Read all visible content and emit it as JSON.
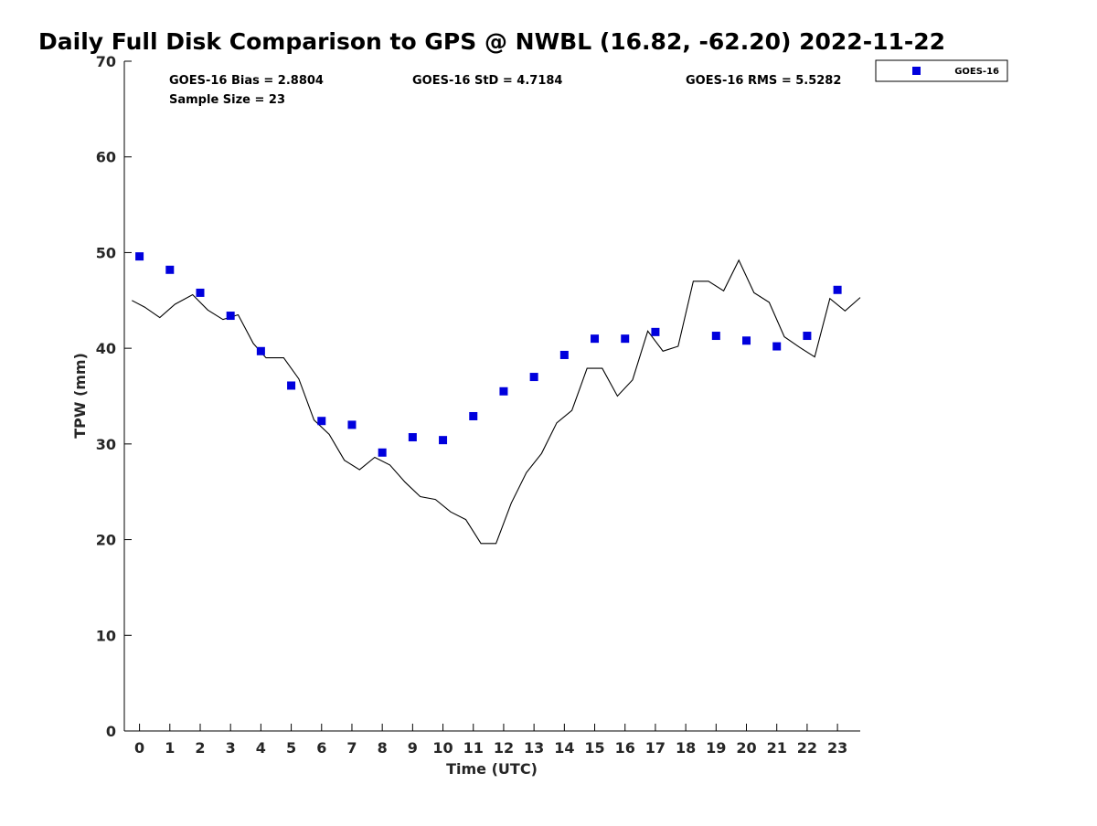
{
  "chart_data": {
    "type": "scatter",
    "title": "Daily Full Disk Comparison to GPS @ NWBL (16.82, -62.20) 2022-11-22",
    "xlabel": "Time (UTC)",
    "ylabel": "TPW (mm)",
    "xlim": [
      -0.5,
      23.75
    ],
    "ylim": [
      0,
      70
    ],
    "x_ticks": [
      0,
      1,
      2,
      3,
      4,
      5,
      6,
      7,
      8,
      9,
      10,
      11,
      12,
      13,
      14,
      15,
      16,
      17,
      18,
      19,
      20,
      21,
      22,
      23
    ],
    "x_tick_labels": [
      "0",
      "1",
      "2",
      "3",
      "4",
      "5",
      "6",
      "7",
      "8",
      "9",
      "10",
      "11",
      "12",
      "13",
      "14",
      "15",
      "16",
      "17",
      "18",
      "19",
      "20",
      "21",
      "22",
      "23"
    ],
    "y_ticks": [
      0,
      10,
      20,
      30,
      40,
      50,
      60,
      70
    ],
    "y_tick_labels": [
      "0",
      "10",
      "20",
      "30",
      "40",
      "50",
      "60",
      "70"
    ],
    "grid": false,
    "legend_position": "top-right, outside plot",
    "stats": {
      "bias": "GOES-16 Bias = 2.8804",
      "std": "GOES-16 StD = 4.7184",
      "rms": "GOES-16 RMS = 5.5282",
      "sample_size": "Sample Size = 23"
    },
    "series": [
      {
        "name": "GOES-16",
        "kind": "scatter",
        "marker": "square",
        "color": "#0000dd",
        "x": [
          0,
          1,
          2,
          3,
          4,
          5,
          6,
          7,
          8,
          9,
          10,
          11,
          12,
          13,
          14,
          15,
          16,
          17,
          19,
          20,
          21,
          22,
          23
        ],
        "y": [
          49.6,
          48.2,
          45.8,
          43.4,
          39.7,
          36.1,
          32.4,
          32.0,
          29.1,
          30.7,
          30.4,
          32.9,
          35.5,
          37.0,
          39.3,
          41.0,
          41.0,
          41.7,
          41.3,
          40.8,
          40.2,
          41.3,
          46.1
        ]
      },
      {
        "kind": "line",
        "color": "#000000",
        "x": [
          -0.25,
          0.17,
          0.67,
          1.17,
          1.75,
          2.25,
          2.75,
          3.25,
          3.75,
          4.17,
          4.75,
          5.25,
          5.75,
          6.25,
          6.75,
          7.25,
          7.75,
          8.25,
          8.75,
          9.25,
          9.75,
          10.25,
          10.75,
          11.25,
          11.75,
          12.25,
          12.75,
          13.25,
          13.75,
          14.25,
          14.75,
          15.25,
          15.75,
          16.25,
          16.75,
          17.25,
          17.75,
          18.25,
          18.75,
          19.25,
          19.75,
          20.25,
          20.75,
          21.25,
          21.75,
          22.25,
          22.75,
          23.25,
          23.75
        ],
        "y": [
          45.0,
          44.3,
          43.2,
          44.6,
          45.6,
          44.0,
          43.0,
          43.5,
          40.5,
          39.0,
          39.0,
          36.8,
          32.5,
          31.0,
          28.3,
          27.3,
          28.6,
          27.8,
          26.0,
          24.5,
          24.2,
          22.9,
          22.1,
          19.6,
          19.6,
          23.8,
          27.0,
          29.0,
          32.2,
          33.5,
          37.9,
          37.9,
          35.0,
          36.7,
          41.8,
          39.7,
          40.2,
          47.0,
          47.0,
          46.0,
          49.2,
          45.8,
          44.8,
          41.2,
          40.1,
          39.1,
          45.2,
          43.9,
          45.3
        ]
      }
    ]
  }
}
